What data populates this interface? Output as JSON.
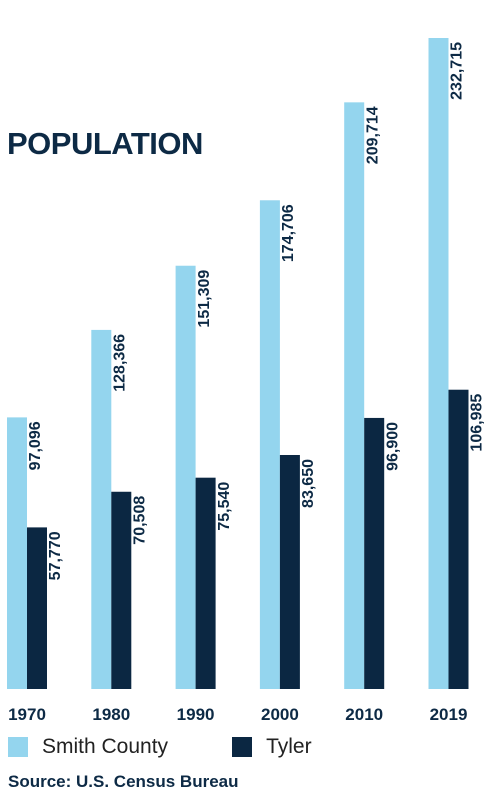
{
  "chart_data": {
    "type": "bar",
    "title": "POPULATION",
    "categories": [
      "1970",
      "1980",
      "1990",
      "2000",
      "2010",
      "2019"
    ],
    "series": [
      {
        "name": "Smith County",
        "color": "#94d5ee",
        "values": [
          97096,
          128366,
          151309,
          174706,
          209714,
          232715
        ],
        "labels": [
          "97,096",
          "128,366",
          "151,309",
          "174,706",
          "209,714",
          "232,715"
        ]
      },
      {
        "name": "Tyler",
        "color": "#0b2742",
        "values": [
          57770,
          70508,
          75540,
          83650,
          96900,
          106985
        ],
        "labels": [
          "57,770",
          "70,508",
          "75,540",
          "83,650",
          "96,900",
          "106,985"
        ]
      }
    ],
    "ylim": [
      0,
      232715
    ],
    "grid": false,
    "legend_position": "bottom-left",
    "source": "Source: U.S. Census Bureau"
  }
}
